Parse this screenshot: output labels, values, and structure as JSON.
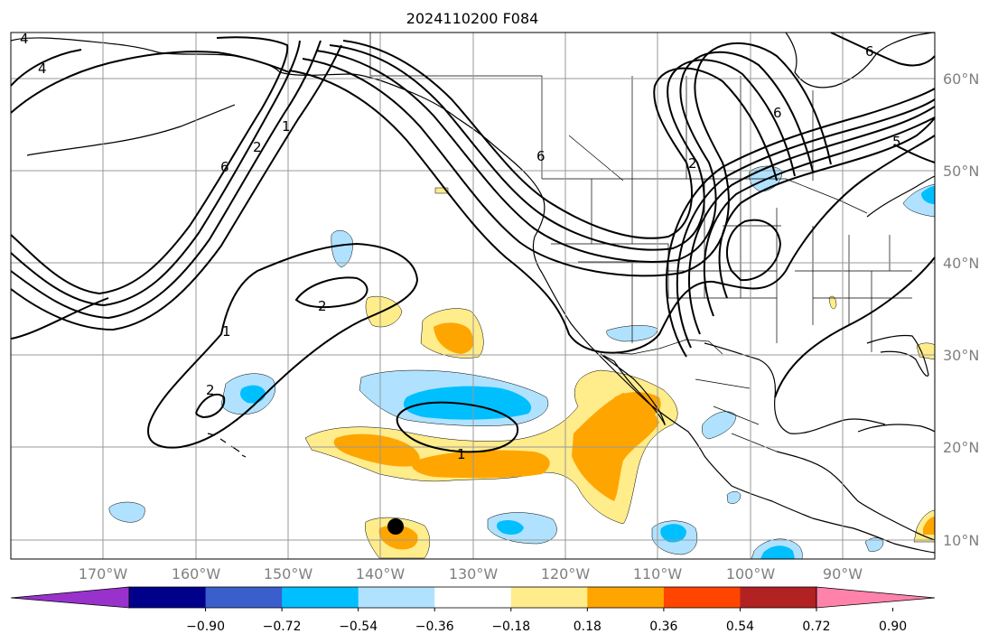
{
  "title": "2024110200 F084",
  "lat_labels": [
    "60°N",
    "50°N",
    "40°N",
    "30°N",
    "20°N",
    "10°N"
  ],
  "lon_labels": [
    "170°W",
    "160°W",
    "150°W",
    "140°W",
    "130°W",
    "120°W",
    "110°W",
    "100°W",
    "90°W"
  ],
  "colorbar": {
    "ticks": [
      "−0.90",
      "−0.72",
      "−0.54",
      "−0.36",
      "−0.18",
      "0.18",
      "0.36",
      "0.54",
      "0.72",
      "0.90"
    ],
    "colors": [
      "#9932cc",
      "#00008b",
      "#3a5fcd",
      "#00bfff",
      "#b0e2ff",
      "#ffffff",
      "#ffec8b",
      "#ffa500",
      "#ff4500",
      "#b22222",
      "#ff82ab"
    ]
  },
  "contour_labels": [
    "4",
    "4",
    "2",
    "1",
    "2",
    "1",
    "2",
    "1",
    "6",
    "2",
    "6",
    "5",
    "6",
    "6"
  ],
  "shading_colors": {
    "light_blue": "#b0e2ff",
    "blue": "#00bfff",
    "light_yellow": "#ffec8b",
    "orange": "#ffa500"
  }
}
